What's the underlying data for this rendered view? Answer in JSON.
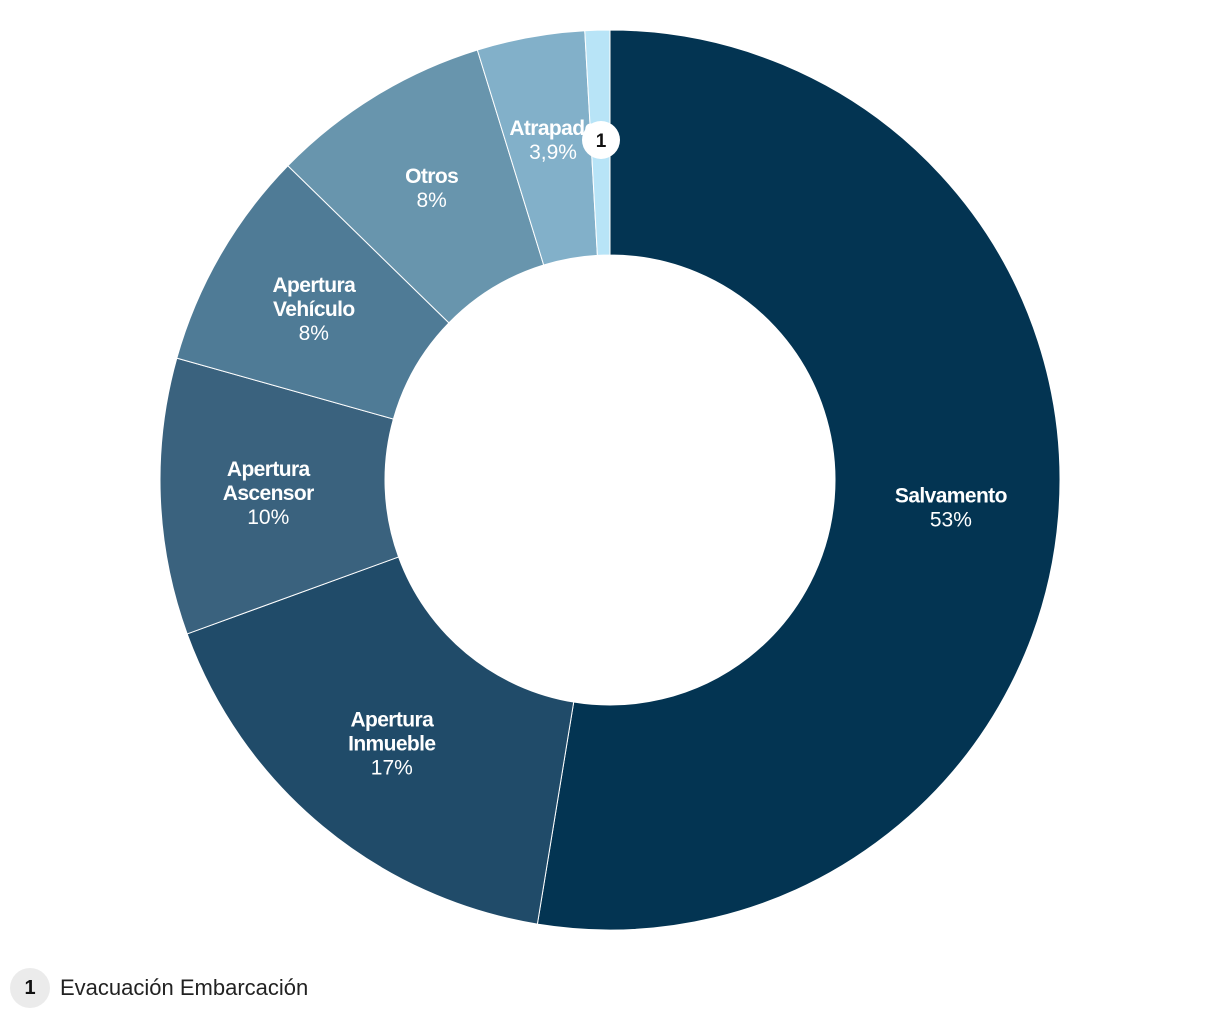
{
  "chart_data": {
    "type": "pie",
    "variant": "donut",
    "title": "",
    "slices": [
      {
        "name": "Salvamento",
        "value_label": "53%",
        "value": 53.0,
        "color": "#033452"
      },
      {
        "name": "Apertura Inmueble",
        "value_label": "17%",
        "value": 17.0,
        "color": "#204b69"
      },
      {
        "name": "Apertura Ascensor",
        "value_label": "10%",
        "value": 10.0,
        "color": "#3a627e"
      },
      {
        "name": "Apertura Vehículo",
        "value_label": "8%",
        "value": 8.0,
        "color": "#4f7b96"
      },
      {
        "name": "Otros",
        "value_label": "8%",
        "value": 8.0,
        "color": "#6895ad"
      },
      {
        "name": "Atrapado",
        "value_label": "3,9%",
        "value": 3.9,
        "color": "#82b0c9"
      },
      {
        "name": "Evacuación Embarcación",
        "value_label": "",
        "value": 0.9,
        "color": "#b8e4f7",
        "footnote": "1"
      }
    ]
  },
  "footnote": {
    "number": "1",
    "text": "Evacuación Embarcación"
  }
}
